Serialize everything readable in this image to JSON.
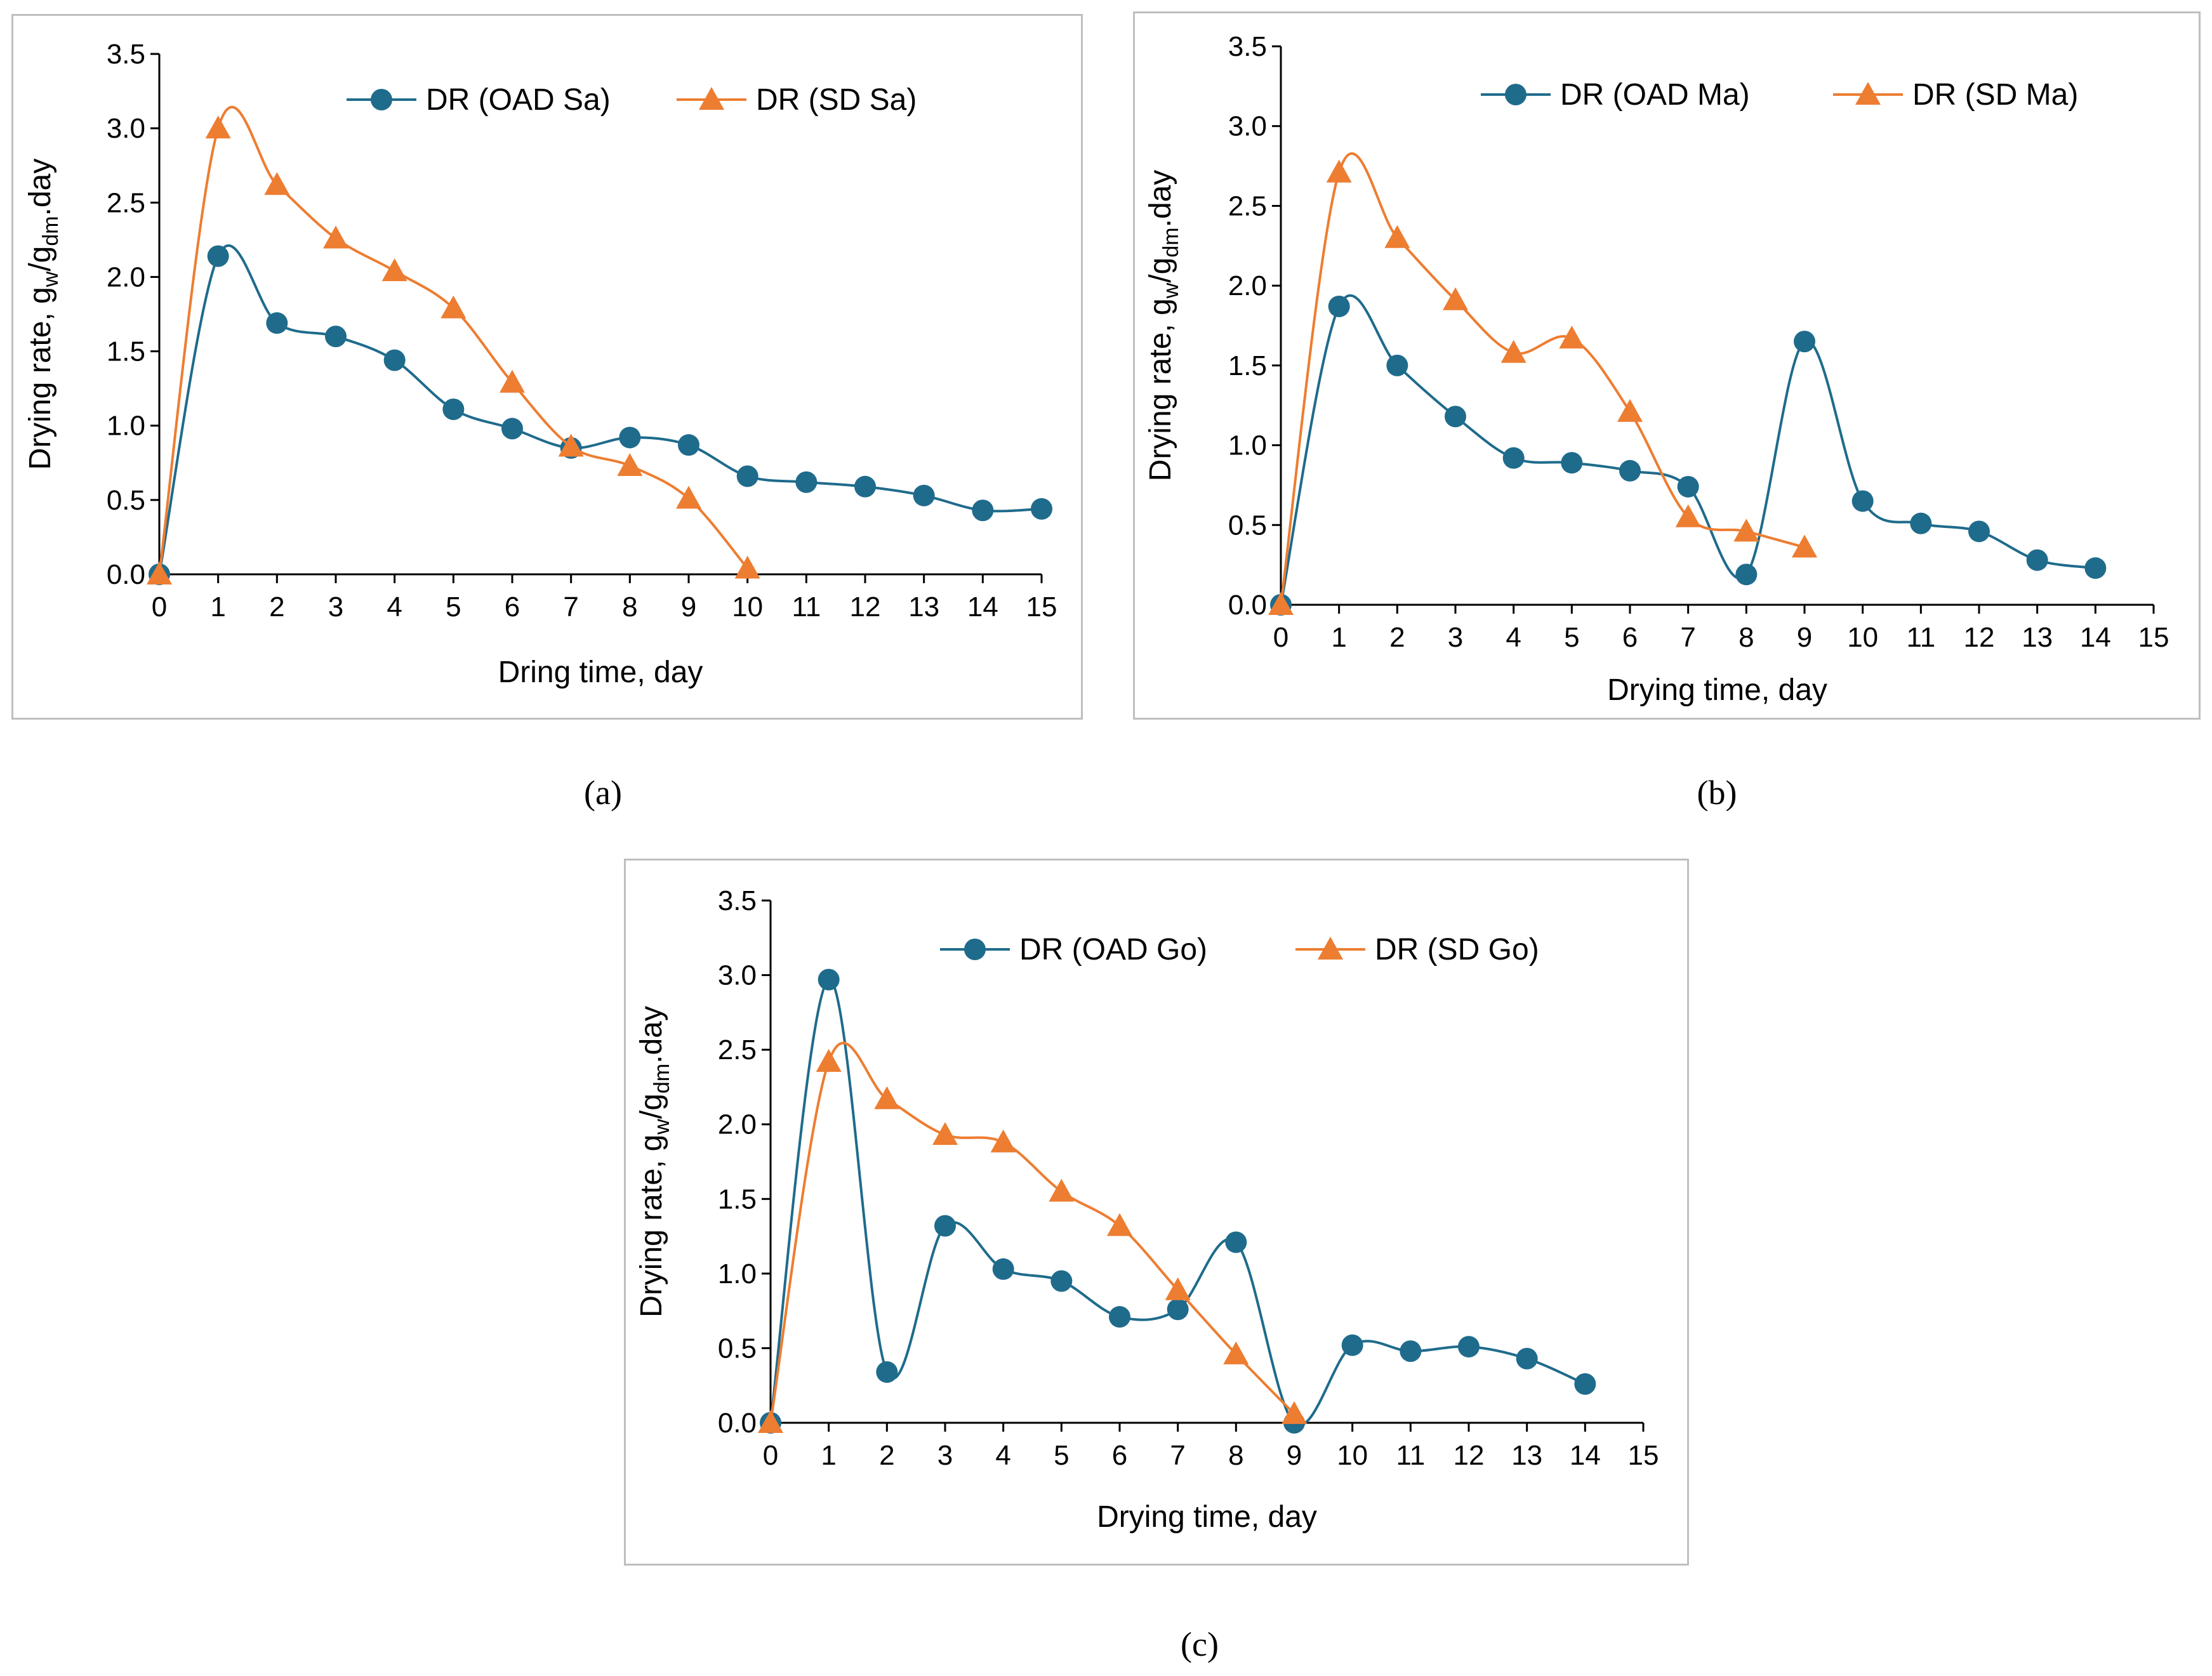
{
  "colors": {
    "oad": "#1f6b8c",
    "sd": "#ed7d31",
    "axis": "#000000"
  },
  "charts": [
    {
      "caption": "(a)",
      "type": "line",
      "ylabel": "Drying rate, g<sub>w</sub>/g<sub>dm</sub>.day",
      "ylabel_parts": [
        "Drying rate, g",
        "w",
        "/g",
        "dm",
        ".day"
      ],
      "xlabel": "Dring time, day",
      "xlim": [
        0,
        15
      ],
      "ylim": [
        0,
        3.5
      ],
      "xticks": [
        "0",
        "1",
        "2",
        "3",
        "4",
        "5",
        "6",
        "7",
        "8",
        "9",
        "10",
        "11",
        "12",
        "13",
        "14",
        "15"
      ],
      "yticks": [
        "0.0",
        "0.5",
        "1.0",
        "1.5",
        "2.0",
        "2.5",
        "3.0",
        "3.5"
      ],
      "legend_position": "top",
      "series": [
        {
          "name": "DR  (OAD Sa)",
          "marker": "circle",
          "color_key": "oad",
          "x": [
            0,
            1,
            2,
            3,
            4,
            5,
            6,
            7,
            8,
            9,
            10,
            11,
            12,
            13,
            14,
            15
          ],
          "y": [
            0.0,
            2.14,
            1.69,
            1.6,
            1.44,
            1.11,
            0.98,
            0.85,
            0.92,
            0.87,
            0.66,
            0.62,
            0.59,
            0.53,
            0.43,
            0.44
          ]
        },
        {
          "name": "DR  (SD Sa)",
          "marker": "triangle",
          "color_key": "sd",
          "x": [
            0,
            1,
            2,
            3,
            4,
            5,
            6,
            7,
            8,
            9,
            10
          ],
          "y": [
            0.0,
            3.0,
            2.62,
            2.26,
            2.04,
            1.79,
            1.29,
            0.86,
            0.73,
            0.51,
            0.04
          ]
        }
      ]
    },
    {
      "caption": "(b)",
      "type": "line",
      "ylabel_parts": [
        "Drying rate, g",
        "w",
        "/g",
        "dm",
        ".day"
      ],
      "xlabel": "Drying time, day",
      "xlim": [
        0,
        15
      ],
      "ylim": [
        0,
        3.5
      ],
      "xticks": [
        "0",
        "1",
        "2",
        "3",
        "4",
        "5",
        "6",
        "7",
        "8",
        "9",
        "10",
        "11",
        "12",
        "13",
        "14",
        "15"
      ],
      "yticks": [
        "0.0",
        "0.5",
        "1.0",
        "1.5",
        "2.0",
        "2.5",
        "3.0",
        "3.5"
      ],
      "legend_position": "top",
      "series": [
        {
          "name": "DR  (OAD Ma)",
          "marker": "circle",
          "color_key": "oad",
          "x": [
            0,
            1,
            2,
            3,
            4,
            5,
            6,
            7,
            8,
            9,
            10,
            11,
            12,
            13,
            14
          ],
          "y": [
            0.0,
            1.87,
            1.5,
            1.18,
            0.92,
            0.89,
            0.84,
            0.74,
            0.19,
            1.65,
            0.65,
            0.51,
            0.46,
            0.28,
            0.23
          ]
        },
        {
          "name": "DR  (SD Ma)",
          "marker": "triangle",
          "color_key": "sd",
          "x": [
            0,
            1,
            2,
            3,
            4,
            5,
            6,
            7,
            8,
            9
          ],
          "y": [
            0.0,
            2.71,
            2.3,
            1.91,
            1.58,
            1.67,
            1.21,
            0.55,
            0.46,
            0.36
          ]
        }
      ]
    },
    {
      "caption": "(c)",
      "type": "line",
      "ylabel_parts": [
        "Drying rate, g",
        "w",
        "/g",
        "dm",
        ".day"
      ],
      "xlabel": "Drying time, day",
      "xlim": [
        0,
        15
      ],
      "ylim": [
        0,
        3.5
      ],
      "xticks": [
        "0",
        "1",
        "2",
        "3",
        "4",
        "5",
        "6",
        "7",
        "8",
        "9",
        "10",
        "11",
        "12",
        "13",
        "14",
        "15"
      ],
      "yticks": [
        "0.0",
        "0.5",
        "1.0",
        "1.5",
        "2.0",
        "2.5",
        "3.0",
        "3.5"
      ],
      "legend_position": "top",
      "series": [
        {
          "name": "DR  (OAD Go)",
          "marker": "circle",
          "color_key": "oad",
          "x": [
            0,
            1,
            2,
            3,
            4,
            5,
            6,
            7,
            8,
            9,
            10,
            11,
            12,
            13,
            14
          ],
          "y": [
            0.0,
            2.97,
            0.34,
            1.32,
            1.03,
            0.95,
            0.71,
            0.76,
            1.21,
            0.0,
            0.52,
            0.48,
            0.51,
            0.43,
            0.26
          ]
        },
        {
          "name": "DR  (SD Go)",
          "marker": "triangle",
          "color_key": "sd",
          "x": [
            0,
            1,
            2,
            3,
            4,
            5,
            6,
            7,
            8,
            9
          ],
          "y": [
            0.0,
            2.42,
            2.17,
            1.93,
            1.88,
            1.55,
            1.32,
            0.89,
            0.46,
            0.06
          ]
        }
      ]
    }
  ]
}
